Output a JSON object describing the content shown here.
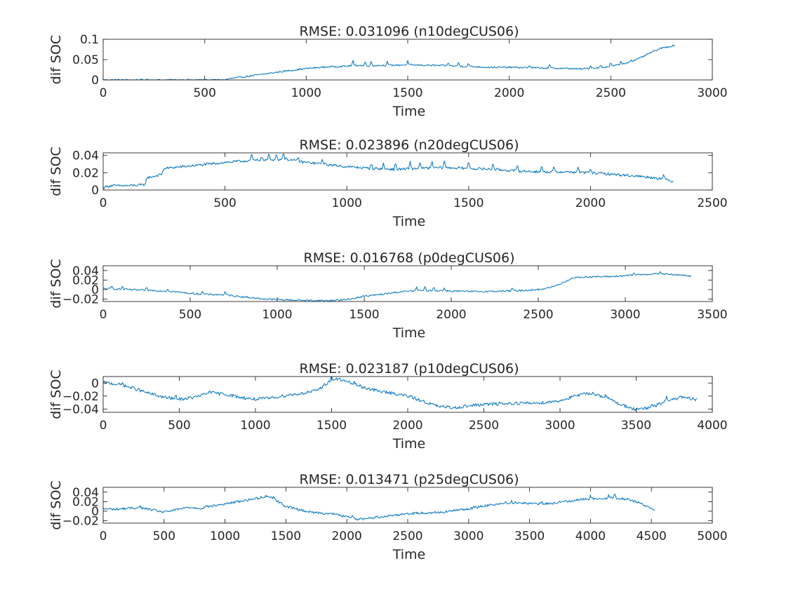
{
  "colors": {
    "line": "#0072BD",
    "axes": "#262626",
    "background": "#ffffff"
  },
  "chart_data": [
    {
      "type": "line",
      "title": "RMSE: 0.031096 (n10degCUS06)",
      "xlabel": "Time",
      "ylabel": "dif SOC",
      "xlim": [
        0,
        3000
      ],
      "ylim": [
        0,
        0.1
      ],
      "xticks": [
        0,
        500,
        1000,
        1500,
        2000,
        2500,
        3000
      ],
      "xtick_labels": [
        "0",
        "500",
        "1000",
        "1500",
        "2000",
        "2500",
        "3000"
      ],
      "yticks": [
        0,
        0.05,
        0.1
      ],
      "ytick_labels": [
        "0",
        "0.05",
        "0.1"
      ],
      "series": [
        {
          "x": [
            0,
            300,
            600,
            620,
            700,
            760,
            800,
            900,
            1000,
            1100,
            1200,
            1250,
            1300,
            1400,
            1500,
            1600,
            1700,
            1800,
            1900,
            2000,
            2100,
            2200,
            2300,
            2350,
            2400,
            2450,
            2500,
            2550,
            2600,
            2650,
            2700,
            2750,
            2815
          ],
          "y": [
            0,
            0,
            0,
            0.003,
            0.008,
            0.012,
            0.015,
            0.022,
            0.028,
            0.032,
            0.034,
            0.036,
            0.035,
            0.036,
            0.037,
            0.036,
            0.035,
            0.033,
            0.031,
            0.031,
            0.03,
            0.029,
            0.028,
            0.027,
            0.029,
            0.03,
            0.034,
            0.038,
            0.045,
            0.055,
            0.068,
            0.078,
            0.085
          ],
          "noise": 0.002,
          "spikes": [
            [
              1230,
              0.012
            ],
            [
              1290,
              0.01
            ],
            [
              1320,
              0.01
            ],
            [
              1400,
              0.009
            ],
            [
              1500,
              0.009
            ],
            [
              1700,
              0.008
            ],
            [
              1750,
              0.009
            ],
            [
              1800,
              0.009
            ],
            [
              2100,
              0.007
            ],
            [
              2200,
              0.008
            ],
            [
              2400,
              0.006
            ],
            [
              2450,
              0.007
            ],
            [
              2500,
              0.008
            ],
            [
              2550,
              0.008
            ],
            [
              2600,
              0.006
            ]
          ]
        }
      ]
    },
    {
      "type": "line",
      "title": "RMSE: 0.023896 (n20degCUS06)",
      "xlabel": "Time",
      "ylabel": "dif SOC",
      "xlim": [
        0,
        2500
      ],
      "ylim": [
        0,
        0.043
      ],
      "xticks": [
        0,
        500,
        1000,
        1500,
        2000,
        2500
      ],
      "xtick_labels": [
        "0",
        "500",
        "1000",
        "1500",
        "2000",
        "2500"
      ],
      "yticks": [
        0,
        0.02,
        0.04
      ],
      "ytick_labels": [
        "0",
        "0.02",
        "0.04"
      ],
      "series": [
        {
          "x": [
            0,
            30,
            100,
            170,
            180,
            240,
            250,
            400,
            500,
            600,
            700,
            750,
            800,
            900,
            1000,
            1100,
            1200,
            1300,
            1400,
            1500,
            1600,
            1700,
            1800,
            1900,
            2000,
            2100,
            2200,
            2300,
            2340
          ],
          "y": [
            0.003,
            0.005,
            0.005,
            0.006,
            0.014,
            0.018,
            0.025,
            0.029,
            0.032,
            0.034,
            0.035,
            0.036,
            0.033,
            0.03,
            0.027,
            0.025,
            0.024,
            0.025,
            0.026,
            0.025,
            0.024,
            0.022,
            0.021,
            0.021,
            0.02,
            0.018,
            0.016,
            0.013,
            0.01
          ],
          "noise": 0.0015,
          "spikes": [
            [
              610,
              0.008
            ],
            [
              650,
              0.006
            ],
            [
              680,
              0.007
            ],
            [
              710,
              0.008
            ],
            [
              740,
              0.009
            ],
            [
              800,
              0.006
            ],
            [
              900,
              0.007
            ],
            [
              1100,
              0.006
            ],
            [
              1150,
              0.006
            ],
            [
              1200,
              0.007
            ],
            [
              1260,
              0.008
            ],
            [
              1300,
              0.008
            ],
            [
              1350,
              0.008
            ],
            [
              1400,
              0.009
            ],
            [
              1500,
              0.009
            ],
            [
              1600,
              0.008
            ],
            [
              1700,
              0.007
            ],
            [
              1800,
              0.007
            ],
            [
              1850,
              0.006
            ],
            [
              1950,
              0.006
            ],
            [
              2000,
              0.006
            ],
            [
              2300,
              0.004
            ]
          ]
        }
      ]
    },
    {
      "type": "line",
      "title": "RMSE: 0.016768 (p0degCUS06)",
      "xlabel": "Time",
      "ylabel": "dif SOC",
      "xlim": [
        0,
        3500
      ],
      "ylim": [
        -0.025,
        0.05
      ],
      "xticks": [
        0,
        500,
        1000,
        1500,
        2000,
        2500,
        3000,
        3500
      ],
      "xtick_labels": [
        "0",
        "500",
        "1000",
        "1500",
        "2000",
        "2500",
        "3000",
        "3500"
      ],
      "yticks": [
        -0.02,
        0,
        0.02,
        0.04
      ],
      "ytick_labels": [
        "−0.02",
        "0",
        "0.02",
        "0.04"
      ],
      "series": [
        {
          "x": [
            0,
            100,
            200,
            300,
            400,
            500,
            600,
            700,
            800,
            900,
            1000,
            1100,
            1200,
            1300,
            1400,
            1500,
            1600,
            1700,
            1800,
            1900,
            2000,
            2100,
            2200,
            2300,
            2400,
            2500,
            2550,
            2600,
            2650,
            2700,
            2800,
            2900,
            3000,
            3100,
            3200,
            3300,
            3380
          ],
          "y": [
            0.002,
            0.001,
            -0.001,
            -0.002,
            -0.004,
            -0.008,
            -0.01,
            -0.011,
            -0.015,
            -0.019,
            -0.021,
            -0.022,
            -0.023,
            -0.023,
            -0.021,
            -0.014,
            -0.01,
            -0.005,
            -0.002,
            -0.002,
            -0.003,
            -0.004,
            -0.004,
            -0.003,
            -0.002,
            0,
            0.003,
            0.008,
            0.016,
            0.025,
            0.027,
            0.027,
            0.029,
            0.032,
            0.033,
            0.031,
            0.028
          ],
          "noise": 0.0018,
          "spikes": [
            [
              50,
              0.006
            ],
            [
              110,
              0.006
            ],
            [
              250,
              0.005
            ],
            [
              370,
              0.005
            ],
            [
              570,
              0.005
            ],
            [
              700,
              0.005
            ],
            [
              1800,
              0.007
            ],
            [
              1850,
              0.007
            ],
            [
              1900,
              0.008
            ],
            [
              1960,
              0.007
            ],
            [
              2350,
              0.005
            ],
            [
              3050,
              0.006
            ],
            [
              3200,
              0.006
            ]
          ]
        }
      ]
    },
    {
      "type": "line",
      "title": "RMSE: 0.023187 (p10degCUS06)",
      "xlabel": "Time",
      "ylabel": "dif SOC",
      "xlim": [
        0,
        4000
      ],
      "ylim": [
        -0.045,
        0.01
      ],
      "xticks": [
        0,
        500,
        1000,
        1500,
        2000,
        2500,
        3000,
        3500,
        4000
      ],
      "xtick_labels": [
        "0",
        "500",
        "1000",
        "1500",
        "2000",
        "2500",
        "3000",
        "3500",
        "4000"
      ],
      "yticks": [
        -0.04,
        -0.02,
        0
      ],
      "ytick_labels": [
        "−0.04",
        "−0.02",
        "0"
      ],
      "series": [
        {
          "x": [
            0,
            100,
            200,
            300,
            400,
            500,
            600,
            700,
            800,
            900,
            1000,
            1100,
            1200,
            1300,
            1400,
            1500,
            1550,
            1600,
            1700,
            1800,
            1900,
            2000,
            2100,
            2200,
            2300,
            2400,
            2500,
            2600,
            2700,
            2800,
            2900,
            3000,
            3100,
            3200,
            3300,
            3400,
            3500,
            3600,
            3700,
            3800,
            3900
          ],
          "y": [
            0.001,
            -0.002,
            -0.008,
            -0.016,
            -0.022,
            -0.025,
            -0.022,
            -0.015,
            -0.017,
            -0.022,
            -0.025,
            -0.023,
            -0.019,
            -0.016,
            -0.012,
            0.005,
            0.006,
            0.002,
            -0.006,
            -0.012,
            -0.016,
            -0.02,
            -0.028,
            -0.036,
            -0.038,
            -0.035,
            -0.033,
            -0.032,
            -0.031,
            -0.031,
            -0.03,
            -0.027,
            -0.02,
            -0.015,
            -0.022,
            -0.033,
            -0.041,
            -0.038,
            -0.027,
            -0.022,
            -0.026
          ],
          "noise": 0.0025,
          "spikes": [
            [
              130,
              0.005
            ],
            [
              480,
              0.004
            ],
            [
              700,
              0.005
            ],
            [
              1500,
              0.006
            ],
            [
              1650,
              0.004
            ],
            [
              1900,
              0.004
            ],
            [
              2600,
              0.003
            ],
            [
              3300,
              0.004
            ],
            [
              3600,
              0.006
            ],
            [
              3700,
              0.005
            ]
          ]
        }
      ]
    },
    {
      "type": "line",
      "title": "RMSE: 0.013471 (p25degCUS06)",
      "xlabel": "Time",
      "ylabel": "dif SOC",
      "xlim": [
        0,
        5000
      ],
      "ylim": [
        -0.025,
        0.05
      ],
      "xticks": [
        0,
        500,
        1000,
        1500,
        2000,
        2500,
        3000,
        3500,
        4000,
        4500,
        5000
      ],
      "xtick_labels": [
        "0",
        "500",
        "1000",
        "1500",
        "2000",
        "2500",
        "3000",
        "3500",
        "4000",
        "4500",
        "5000"
      ],
      "yticks": [
        -0.02,
        0,
        0.02,
        0.04
      ],
      "ytick_labels": [
        "−0.02",
        "0",
        "0.02",
        "0.04"
      ],
      "series": [
        {
          "x": [
            0,
            100,
            200,
            300,
            400,
            500,
            600,
            700,
            800,
            900,
            1000,
            1100,
            1200,
            1300,
            1350,
            1400,
            1500,
            1600,
            1700,
            1800,
            1900,
            2000,
            2100,
            2200,
            2300,
            2400,
            2500,
            2600,
            2700,
            2800,
            2900,
            3000,
            3100,
            3200,
            3300,
            3400,
            3500,
            3600,
            3700,
            3800,
            3900,
            4000,
            4100,
            4200,
            4300,
            4400,
            4500,
            4530
          ],
          "y": [
            0.005,
            0.004,
            0.006,
            0.007,
            0.003,
            -0.002,
            0.003,
            0.008,
            0.006,
            0.011,
            0.015,
            0.02,
            0.024,
            0.029,
            0.032,
            0.026,
            0.01,
            0.004,
            -0.002,
            -0.004,
            -0.006,
            -0.012,
            -0.017,
            -0.014,
            -0.011,
            -0.008,
            -0.005,
            -0.004,
            -0.003,
            -0.002,
            0.002,
            0.005,
            0.01,
            0.014,
            0.017,
            0.018,
            0.016,
            0.015,
            0.017,
            0.02,
            0.024,
            0.026,
            0.027,
            0.028,
            0.025,
            0.018,
            0.005,
            0.004
          ],
          "noise": 0.0025,
          "spikes": [
            [
              300,
              0.005
            ],
            [
              850,
              0.005
            ],
            [
              1400,
              0.005
            ],
            [
              2050,
              0.006
            ],
            [
              3350,
              0.005
            ],
            [
              3600,
              0.005
            ],
            [
              3800,
              0.005
            ],
            [
              4000,
              0.006
            ],
            [
              4150,
              0.007
            ],
            [
              4200,
              0.009
            ]
          ]
        }
      ]
    }
  ]
}
